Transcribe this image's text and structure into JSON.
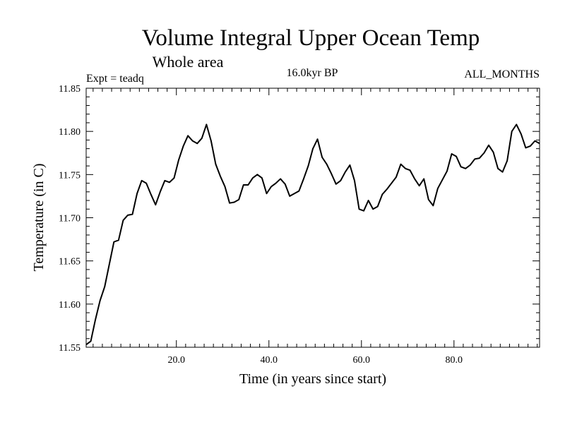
{
  "chart_data": {
    "type": "line",
    "title": "Volume Integral Upper Ocean Temp",
    "subtitle": "Whole area",
    "annotations": {
      "left": "Expt = teadq",
      "center": "16.0kyr BP",
      "right": "ALL_MONTHS"
    },
    "xlabel": "Time (in years since start)",
    "ylabel": "Temperature (in C)",
    "xlim": [
      0.5,
      98.5
    ],
    "ylim": [
      11.55,
      11.85
    ],
    "x_ticks": [
      20,
      40,
      60,
      80
    ],
    "x_tick_labels": [
      "20.0",
      "40.0",
      "60.0",
      "80.0"
    ],
    "y_ticks": [
      11.55,
      11.6,
      11.65,
      11.7,
      11.75,
      11.8,
      11.85
    ],
    "y_tick_labels": [
      "11.55",
      "11.60",
      "11.65",
      "11.70",
      "11.75",
      "11.80",
      "11.85"
    ],
    "grid": false,
    "x_start": 0.5,
    "x_step": 1,
    "series": [
      {
        "name": "Temperature",
        "values": [
          11.553,
          11.557,
          11.582,
          11.604,
          11.62,
          11.646,
          11.672,
          11.674,
          11.697,
          11.703,
          11.704,
          11.728,
          11.743,
          11.74,
          11.727,
          11.715,
          11.73,
          11.743,
          11.741,
          11.746,
          11.767,
          11.783,
          11.795,
          11.789,
          11.786,
          11.792,
          11.808,
          11.789,
          11.762,
          11.748,
          11.736,
          11.717,
          11.718,
          11.721,
          11.738,
          11.738,
          11.746,
          11.75,
          11.746,
          11.728,
          11.736,
          11.74,
          11.745,
          11.739,
          11.725,
          11.728,
          11.731,
          11.745,
          11.76,
          11.78,
          11.791,
          11.77,
          11.762,
          11.751,
          11.739,
          11.743,
          11.753,
          11.761,
          11.743,
          11.71,
          11.708,
          11.72,
          11.71,
          11.713,
          11.727,
          11.733,
          11.74,
          11.747,
          11.762,
          11.757,
          11.755,
          11.745,
          11.737,
          11.745,
          11.721,
          11.714,
          11.734,
          11.744,
          11.754,
          11.774,
          11.771,
          11.759,
          11.757,
          11.761,
          11.768,
          11.769,
          11.775,
          11.784,
          11.776,
          11.757,
          11.753,
          11.766,
          11.8,
          11.808,
          11.797,
          11.781,
          11.783,
          11.789,
          11.786
        ]
      }
    ]
  }
}
